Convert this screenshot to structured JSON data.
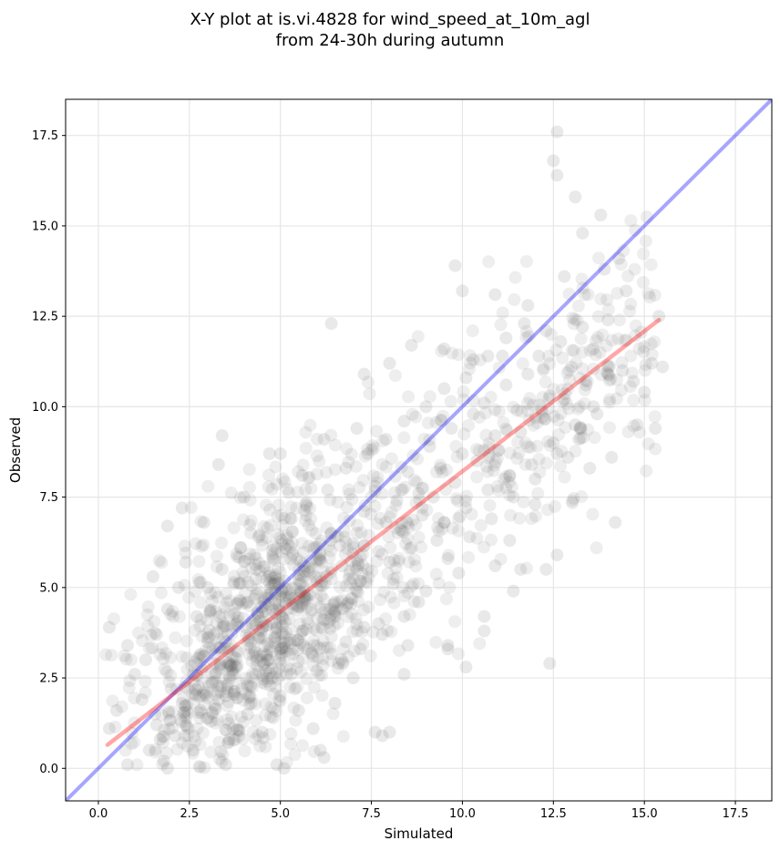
{
  "chart_data": {
    "type": "scatter",
    "title_line1": "X-Y plot at is.vi.4828 for wind_speed_at_10m_agl",
    "title_line2": "from 24-30h during autumn",
    "xlabel": "Simulated",
    "ylabel": "Observed",
    "xlim": [
      -0.9,
      18.5
    ],
    "ylim": [
      -0.9,
      18.5
    ],
    "xticks": [
      "0.0",
      "2.5",
      "5.0",
      "7.5",
      "10.0",
      "12.5",
      "15.0",
      "17.5"
    ],
    "yticks": [
      "0.0",
      "2.5",
      "5.0",
      "7.5",
      "10.0",
      "12.5",
      "15.0",
      "17.5"
    ],
    "grid": true,
    "colors": {
      "points": "#555555",
      "identity_line": "#0000ff",
      "fit_line": "#ff0000"
    },
    "identity_line": {
      "x": [
        -0.9,
        18.5
      ],
      "y": [
        -0.9,
        18.5
      ]
    },
    "fit_line": {
      "x": [
        0.25,
        15.4
      ],
      "y": [
        0.65,
        12.4
      ]
    },
    "point_count_approx": 1500,
    "points": [
      [
        3.4,
        9.2
      ],
      [
        3.3,
        8.4
      ],
      [
        2.3,
        7.2
      ],
      [
        1.9,
        6.7
      ],
      [
        4.0,
        7.5
      ],
      [
        6.4,
        12.3
      ],
      [
        9.8,
        13.9
      ],
      [
        10.0,
        13.2
      ],
      [
        10.9,
        13.1
      ],
      [
        12.3,
        12.1
      ],
      [
        12.6,
        17.6
      ],
      [
        12.5,
        16.8
      ],
      [
        12.6,
        16.4
      ],
      [
        12.8,
        13.6
      ],
      [
        13.1,
        15.8
      ],
      [
        13.8,
        15.3
      ],
      [
        14.5,
        13.2
      ],
      [
        15.4,
        12.5
      ],
      [
        15.5,
        11.1
      ],
      [
        15.2,
        11.2
      ],
      [
        15.3,
        9.4
      ],
      [
        14.1,
        8.6
      ],
      [
        14.2,
        6.8
      ],
      [
        12.6,
        5.9
      ],
      [
        12.3,
        5.5
      ],
      [
        12.4,
        2.9
      ],
      [
        11.4,
        4.9
      ],
      [
        10.6,
        3.8
      ],
      [
        10.1,
        2.8
      ],
      [
        10.6,
        4.2
      ],
      [
        9.6,
        3.4
      ],
      [
        9.6,
        3.3
      ],
      [
        8.4,
        2.6
      ],
      [
        8.5,
        3.4
      ],
      [
        8.0,
        1.0
      ],
      [
        7.8,
        0.9
      ],
      [
        7.6,
        1.0
      ],
      [
        6.2,
        0.3
      ],
      [
        6.1,
        0.5
      ],
      [
        5.1,
        0.0
      ],
      [
        4.9,
        0.1
      ],
      [
        3.5,
        0.1
      ],
      [
        1.9,
        0.0
      ],
      [
        1.8,
        0.2
      ],
      [
        0.8,
        0.1
      ],
      [
        0.3,
        1.1
      ],
      [
        0.3,
        3.9
      ],
      [
        1.5,
        5.3
      ],
      [
        0.5,
        1.6
      ],
      [
        2.4,
        5.7
      ],
      [
        2.9,
        6.8
      ],
      [
        4.7,
        8.7
      ],
      [
        5.0,
        8.7
      ],
      [
        5.6,
        8.1
      ],
      [
        6.2,
        9.1
      ],
      [
        7.1,
        9.4
      ],
      [
        7.3,
        10.9
      ],
      [
        8.0,
        11.2
      ],
      [
        8.6,
        11.7
      ],
      [
        9.5,
        11.6
      ],
      [
        10.3,
        11.3
      ],
      [
        11.1,
        11.4
      ],
      [
        11.8,
        12.8
      ],
      [
        13.3,
        14.8
      ],
      [
        13.9,
        13.8
      ],
      [
        14.3,
        14.1
      ],
      [
        15.0,
        10.4
      ],
      [
        14.8,
        9.5
      ],
      [
        13.5,
        8.3
      ],
      [
        13.6,
        10.0
      ],
      [
        12.9,
        8.6
      ],
      [
        12.0,
        7.3
      ],
      [
        11.3,
        6.3
      ],
      [
        11.6,
        5.5
      ],
      [
        10.9,
        5.6
      ],
      [
        9.9,
        5.4
      ],
      [
        9.3,
        6.3
      ],
      [
        8.8,
        4.6
      ],
      [
        8.1,
        5.1
      ],
      [
        7.7,
        4.0
      ],
      [
        7.3,
        3.9
      ],
      [
        7.0,
        2.5
      ],
      [
        6.5,
        1.8
      ],
      [
        5.9,
        1.1
      ],
      [
        5.5,
        1.6
      ],
      [
        5.0,
        2.0
      ],
      [
        4.5,
        1.0
      ],
      [
        4.1,
        1.5
      ],
      [
        3.6,
        0.8
      ],
      [
        3.1,
        1.3
      ],
      [
        2.6,
        0.5
      ],
      [
        2.1,
        0.9
      ],
      [
        1.6,
        1.2
      ],
      [
        1.2,
        1.9
      ],
      [
        1.0,
        2.6
      ],
      [
        0.8,
        3.4
      ],
      [
        1.3,
        3.0
      ],
      [
        1.6,
        3.7
      ],
      [
        1.9,
        4.4
      ],
      [
        2.2,
        5.0
      ],
      [
        2.7,
        4.2
      ],
      [
        3.0,
        3.6
      ],
      [
        3.2,
        2.9
      ],
      [
        3.5,
        3.5
      ],
      [
        3.8,
        4.0
      ],
      [
        4.1,
        4.6
      ],
      [
        4.3,
        3.2
      ],
      [
        4.6,
        2.7
      ],
      [
        4.9,
        3.9
      ],
      [
        5.2,
        4.4
      ],
      [
        5.5,
        5.2
      ],
      [
        5.8,
        4.8
      ],
      [
        6.1,
        5.9
      ],
      [
        6.4,
        6.5
      ],
      [
        6.7,
        5.6
      ],
      [
        7.0,
        6.2
      ],
      [
        7.3,
        7.1
      ],
      [
        7.6,
        7.8
      ],
      [
        7.9,
        6.8
      ],
      [
        8.2,
        7.4
      ],
      [
        8.5,
        8.2
      ],
      [
        8.8,
        7.6
      ],
      [
        9.1,
        8.9
      ],
      [
        9.4,
        8.3
      ],
      [
        9.7,
        9.4
      ],
      [
        10.0,
        8.7
      ],
      [
        10.3,
        9.8
      ],
      [
        10.6,
        10.1
      ],
      [
        10.9,
        9.2
      ],
      [
        11.2,
        10.6
      ],
      [
        11.5,
        9.9
      ],
      [
        11.8,
        10.9
      ],
      [
        12.1,
        11.4
      ],
      [
        12.4,
        10.3
      ],
      [
        12.7,
        11.8
      ],
      [
        13.0,
        11.1
      ],
      [
        13.3,
        12.2
      ],
      [
        13.6,
        11.6
      ],
      [
        14.0,
        12.4
      ],
      [
        14.4,
        11.0
      ],
      [
        14.7,
        10.7
      ],
      [
        2.0,
        2.2
      ],
      [
        2.3,
        1.8
      ],
      [
        2.6,
        2.6
      ],
      [
        2.9,
        2.1
      ],
      [
        3.2,
        2.4
      ],
      [
        3.5,
        2.0
      ],
      [
        3.8,
        2.8
      ],
      [
        4.1,
        2.3
      ],
      [
        4.4,
        3.6
      ],
      [
        4.7,
        3.0
      ],
      [
        5.0,
        3.3
      ],
      [
        5.3,
        2.6
      ],
      [
        5.6,
        3.8
      ],
      [
        5.9,
        3.1
      ],
      [
        6.2,
        4.1
      ],
      [
        6.5,
        4.6
      ],
      [
        6.8,
        3.5
      ],
      [
        7.1,
        4.9
      ],
      [
        7.4,
        5.5
      ],
      [
        7.7,
        6.0
      ],
      [
        8.0,
        5.7
      ],
      [
        8.3,
        6.6
      ],
      [
        8.6,
        6.1
      ],
      [
        8.9,
        7.0
      ],
      [
        9.2,
        7.5
      ],
      [
        9.5,
        6.8
      ],
      [
        9.8,
        7.9
      ],
      [
        10.1,
        7.2
      ],
      [
        10.4,
        8.5
      ],
      [
        10.7,
        7.7
      ],
      [
        11.0,
        8.8
      ],
      [
        11.3,
        8.1
      ],
      [
        11.6,
        9.3
      ],
      [
        11.9,
        8.4
      ],
      [
        12.2,
        9.7
      ],
      [
        12.5,
        9.0
      ],
      [
        12.8,
        10.2
      ],
      [
        13.1,
        9.5
      ],
      [
        13.4,
        10.6
      ],
      [
        13.7,
        9.8
      ],
      [
        14.0,
        10.9
      ],
      [
        1.4,
        0.5
      ],
      [
        1.7,
        0.8
      ],
      [
        2.4,
        1.2
      ],
      [
        2.8,
        1.6
      ],
      [
        3.3,
        1.9
      ],
      [
        3.7,
        1.1
      ],
      [
        4.2,
        1.8
      ],
      [
        4.8,
        1.4
      ],
      [
        5.4,
        2.2
      ],
      [
        6.0,
        2.7
      ],
      [
        6.6,
        2.9
      ],
      [
        7.2,
        3.3
      ],
      [
        7.8,
        3.7
      ],
      [
        8.4,
        4.2
      ],
      [
        9.0,
        4.9
      ],
      [
        9.6,
        5.8
      ],
      [
        10.2,
        6.4
      ],
      [
        10.8,
        6.9
      ],
      [
        11.4,
        7.5
      ],
      [
        12.0,
        8.0
      ],
      [
        12.6,
        8.7
      ],
      [
        13.2,
        9.1
      ],
      [
        3.0,
        5.0
      ],
      [
        3.4,
        5.5
      ],
      [
        3.9,
        6.1
      ],
      [
        4.4,
        6.4
      ],
      [
        4.8,
        5.8
      ],
      [
        5.3,
        6.9
      ],
      [
        5.7,
        7.3
      ],
      [
        6.3,
        7.7
      ],
      [
        6.8,
        8.3
      ],
      [
        7.4,
        8.7
      ],
      [
        7.9,
        9.1
      ],
      [
        8.4,
        9.6
      ],
      [
        9.0,
        10.0
      ],
      [
        9.5,
        10.5
      ],
      [
        10.1,
        10.8
      ],
      [
        10.7,
        11.4
      ],
      [
        11.2,
        11.9
      ],
      [
        11.7,
        12.3
      ]
    ]
  }
}
